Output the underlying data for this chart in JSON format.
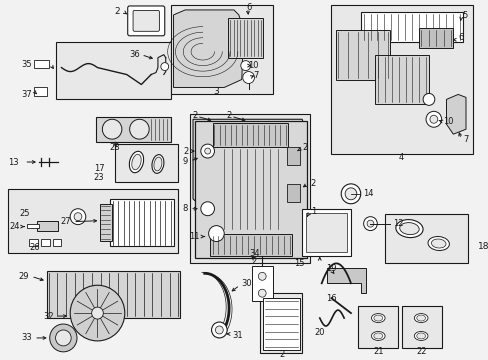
{
  "bg_color": "#f2f2f2",
  "line_color": "#1a1a1a",
  "box_bg": "#e8e8e8",
  "white": "#ffffff",
  "figsize": [
    4.89,
    3.6
  ],
  "dpi": 100
}
